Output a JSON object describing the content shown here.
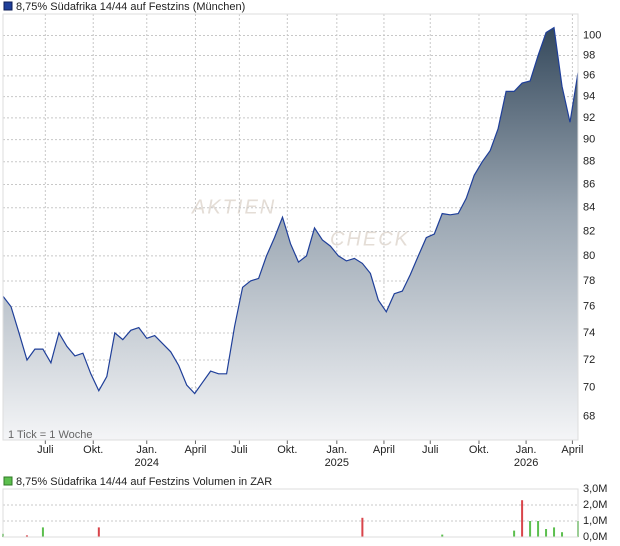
{
  "chart_data": [
    {
      "type": "line",
      "title": "8,75% Südafrika 14/44 auf Festzins (München)",
      "note": "1 Tick = 1 Woche",
      "watermark": [
        "AKTIEN",
        "CHECK"
      ],
      "log_scale": true,
      "grid": true,
      "xlim": [
        0,
        72
      ],
      "ylim": [
        66.4,
        102.2
      ],
      "yticks": [
        68,
        70,
        72,
        74,
        76,
        78,
        80,
        82,
        84,
        86,
        88,
        90,
        92,
        94,
        96,
        98,
        100
      ],
      "xticks": [
        {
          "value": 5.3,
          "label": "Juli"
        },
        {
          "value": 11.3,
          "label": "Okt."
        },
        {
          "value": 18.0,
          "label": "Jan."
        },
        {
          "value": 24.1,
          "label": "April"
        },
        {
          "value": 29.6,
          "label": "Juli"
        },
        {
          "value": 35.6,
          "label": "Okt."
        },
        {
          "value": 41.8,
          "label": "Jan."
        },
        {
          "value": 47.7,
          "label": "April"
        },
        {
          "value": 53.5,
          "label": "Juli"
        },
        {
          "value": 59.6,
          "label": "Okt."
        },
        {
          "value": 65.5,
          "label": "Jan."
        },
        {
          "value": 71.3,
          "label": "April"
        }
      ],
      "years": [
        {
          "value": 18.0,
          "label": "2024"
        },
        {
          "value": 41.8,
          "label": "2025"
        },
        {
          "value": 65.5,
          "label": "2026"
        }
      ],
      "series": [
        {
          "color": "#1f3f99",
          "values": [
            76.8,
            76.0,
            74.0,
            72.0,
            72.8,
            72.8,
            71.8,
            74.0,
            73.0,
            72.3,
            72.5,
            71.0,
            69.8,
            70.8,
            74.0,
            73.5,
            74.2,
            74.4,
            73.6,
            73.8,
            73.2,
            72.6,
            71.6,
            70.2,
            69.6,
            70.4,
            71.2,
            71.0,
            71.0,
            74.5,
            77.5,
            78.0,
            78.2,
            80.0,
            81.5,
            83.2,
            81.0,
            79.5,
            80.0,
            82.3,
            81.3,
            80.8,
            80.0,
            79.6,
            79.8,
            79.4,
            78.6,
            76.5,
            75.6,
            77.0,
            77.2,
            78.5,
            80.0,
            81.5,
            81.8,
            83.5,
            83.4,
            83.5,
            84.8,
            86.8,
            88.0,
            89.0,
            91.0,
            94.5,
            94.5,
            95.3,
            95.5,
            98.0,
            100.3,
            100.8,
            95.0,
            91.6,
            96.3
          ]
        }
      ]
    },
    {
      "type": "bar",
      "title": "8,75% Südafrika 14/44 auf Festzins Volumen in ZAR",
      "xlim": [
        0,
        72
      ],
      "ylim": [
        0,
        3000000
      ],
      "yticks": [
        {
          "value": 0,
          "label": "0,0M"
        },
        {
          "value": 1000000,
          "label": "1,0M"
        },
        {
          "value": 2000000,
          "label": "2,0M"
        },
        {
          "value": 3000000,
          "label": "3,0M"
        }
      ],
      "series": [
        {
          "color": "#5cbf4e",
          "x": [
            0,
            5,
            55,
            64,
            66,
            67,
            68,
            69,
            70,
            72
          ],
          "values": [
            200000,
            600000,
            150000,
            400000,
            1000000,
            1000000,
            500000,
            600000,
            300000,
            1000000
          ]
        },
        {
          "color": "#d9444a",
          "x": [
            3,
            12,
            45,
            65
          ],
          "values": [
            100000,
            600000,
            1200000,
            2300000
          ]
        }
      ]
    }
  ]
}
